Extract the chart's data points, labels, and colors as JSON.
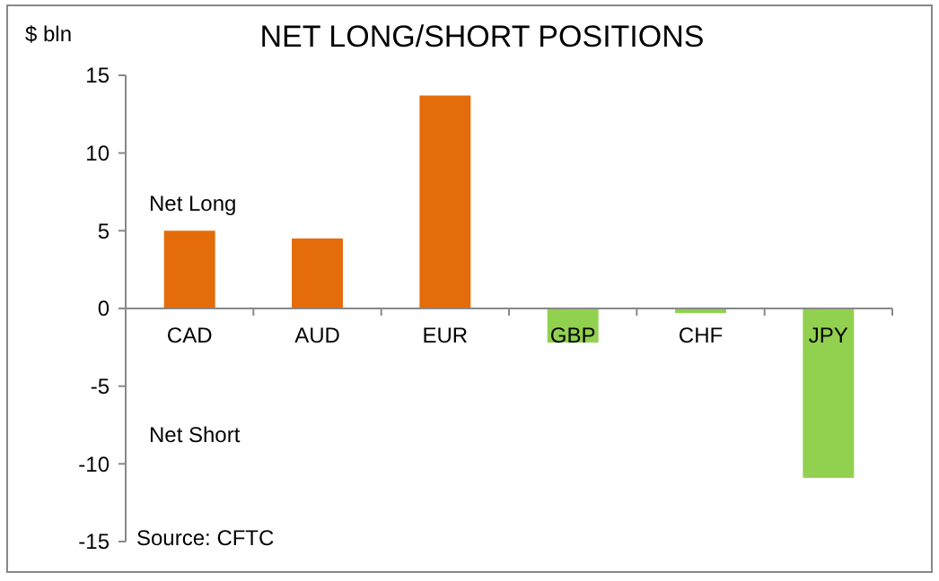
{
  "chart_data": {
    "type": "bar",
    "title": "NET LONG/SHORT POSITIONS",
    "ylabel": "$ bln",
    "categories": [
      "CAD",
      "AUD",
      "EUR",
      "GBP",
      "CHF",
      "JPY"
    ],
    "values": [
      5.0,
      4.5,
      13.7,
      -2.2,
      -0.3,
      -10.9
    ],
    "colors": [
      "#e46c0a",
      "#e46c0a",
      "#e46c0a",
      "#92d050",
      "#92d050",
      "#92d050"
    ],
    "ylim": [
      -15,
      15
    ],
    "yticks": [
      -15,
      -10,
      -5,
      0,
      5,
      10,
      15
    ],
    "grid": false,
    "annotations": [
      "Net Long",
      "Net Short",
      "Source: CFTC"
    ]
  }
}
